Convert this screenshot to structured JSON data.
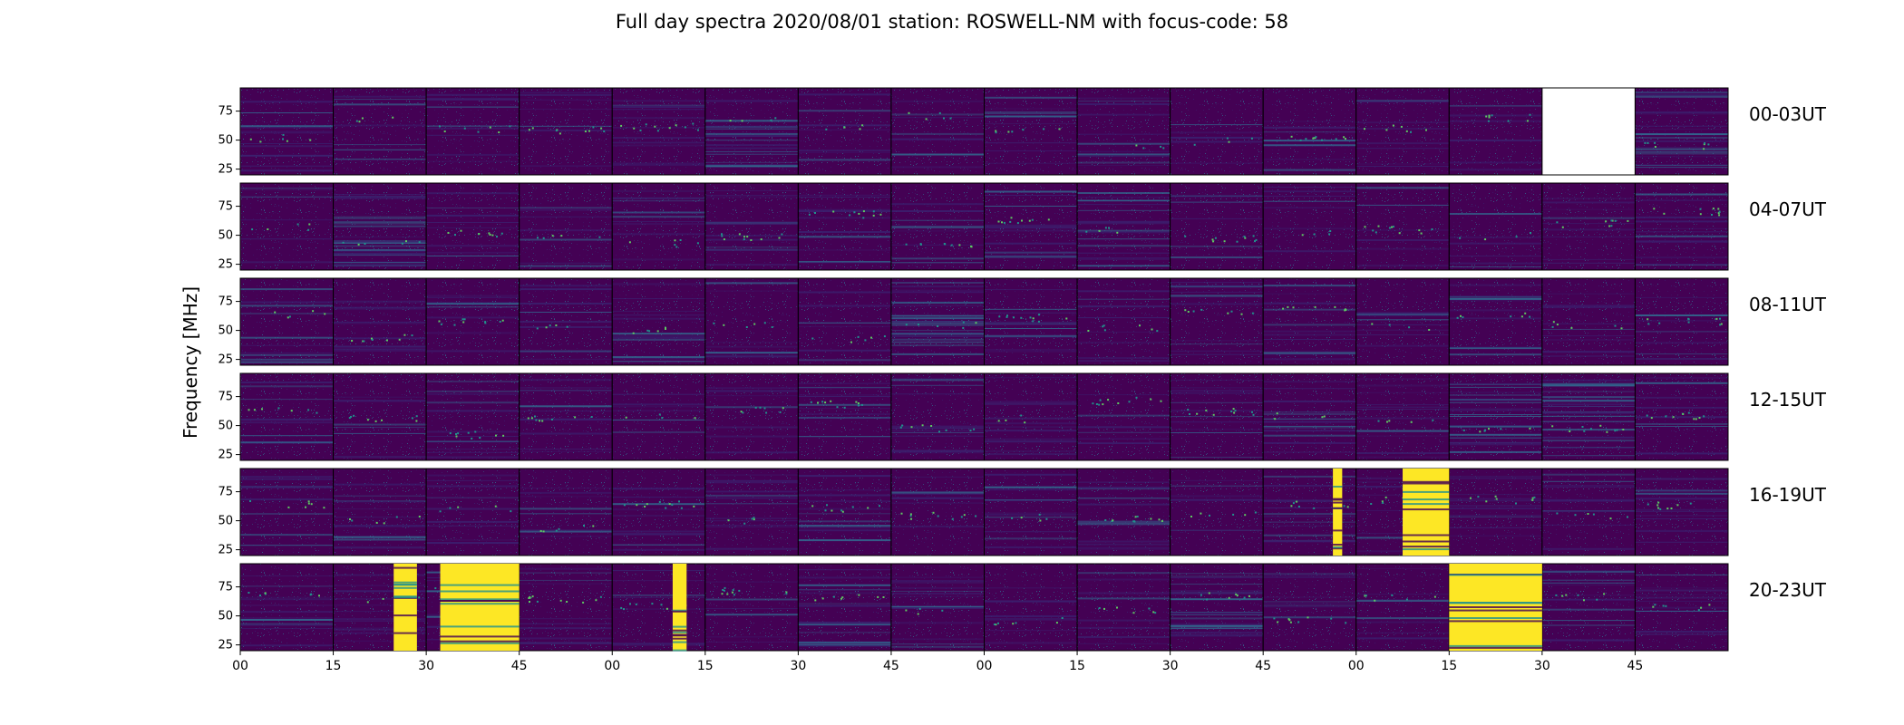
{
  "chart_data": {
    "type": "heatmap",
    "title": "Full day spectra 2020/08/01 station: ROSWELL-NM with focus-code: 58",
    "ylabel": "Frequency [MHz]",
    "xlabel": "",
    "colormap": "viridis",
    "ylim": [
      20,
      95
    ],
    "yticks": [
      25,
      50,
      75
    ],
    "xtick_labels": [
      "00",
      "15",
      "30",
      "45",
      "00",
      "15",
      "30",
      "45",
      "00",
      "15",
      "30",
      "45",
      "00",
      "15",
      "30",
      "45"
    ],
    "minutes_per_panel": 15,
    "panels_per_row": 16,
    "rows": [
      {
        "label": "00-03UT",
        "missing_panels": [
          14
        ],
        "bright_panels": [],
        "enhanced_panels": [
          5,
          15
        ]
      },
      {
        "label": "04-07UT",
        "missing_panels": [],
        "bright_panels": [],
        "enhanced_panels": [
          1,
          9
        ]
      },
      {
        "label": "08-11UT",
        "missing_panels": [],
        "bright_panels": [],
        "enhanced_panels": [
          7
        ]
      },
      {
        "label": "12-15UT",
        "missing_panels": [],
        "bright_panels": [],
        "enhanced_panels": [
          13,
          14
        ]
      },
      {
        "label": "16-19UT",
        "missing_panels": [],
        "bright_panels": [
          {
            "panel": 12,
            "from": 0.5,
            "to": 1.0
          },
          {
            "panel": 11,
            "from": 0.75,
            "to": 0.85
          }
        ],
        "enhanced_panels": []
      },
      {
        "label": "20-23UT",
        "missing_panels": [],
        "bright_panels": [
          {
            "panel": 1,
            "from": 0.65,
            "to": 0.9
          },
          {
            "panel": 2,
            "from": 0.15,
            "to": 1.0
          },
          {
            "panel": 4,
            "from": 0.65,
            "to": 0.8
          },
          {
            "panel": 13,
            "from": 0.0,
            "to": 1.0
          }
        ],
        "enhanced_panels": [
          6,
          10
        ]
      }
    ]
  },
  "colors": {
    "background": "#440154",
    "low": "#3b1f6e",
    "mid": "#31688e",
    "cyan": "#21918c",
    "green": "#5ec962",
    "high": "#fde725"
  }
}
